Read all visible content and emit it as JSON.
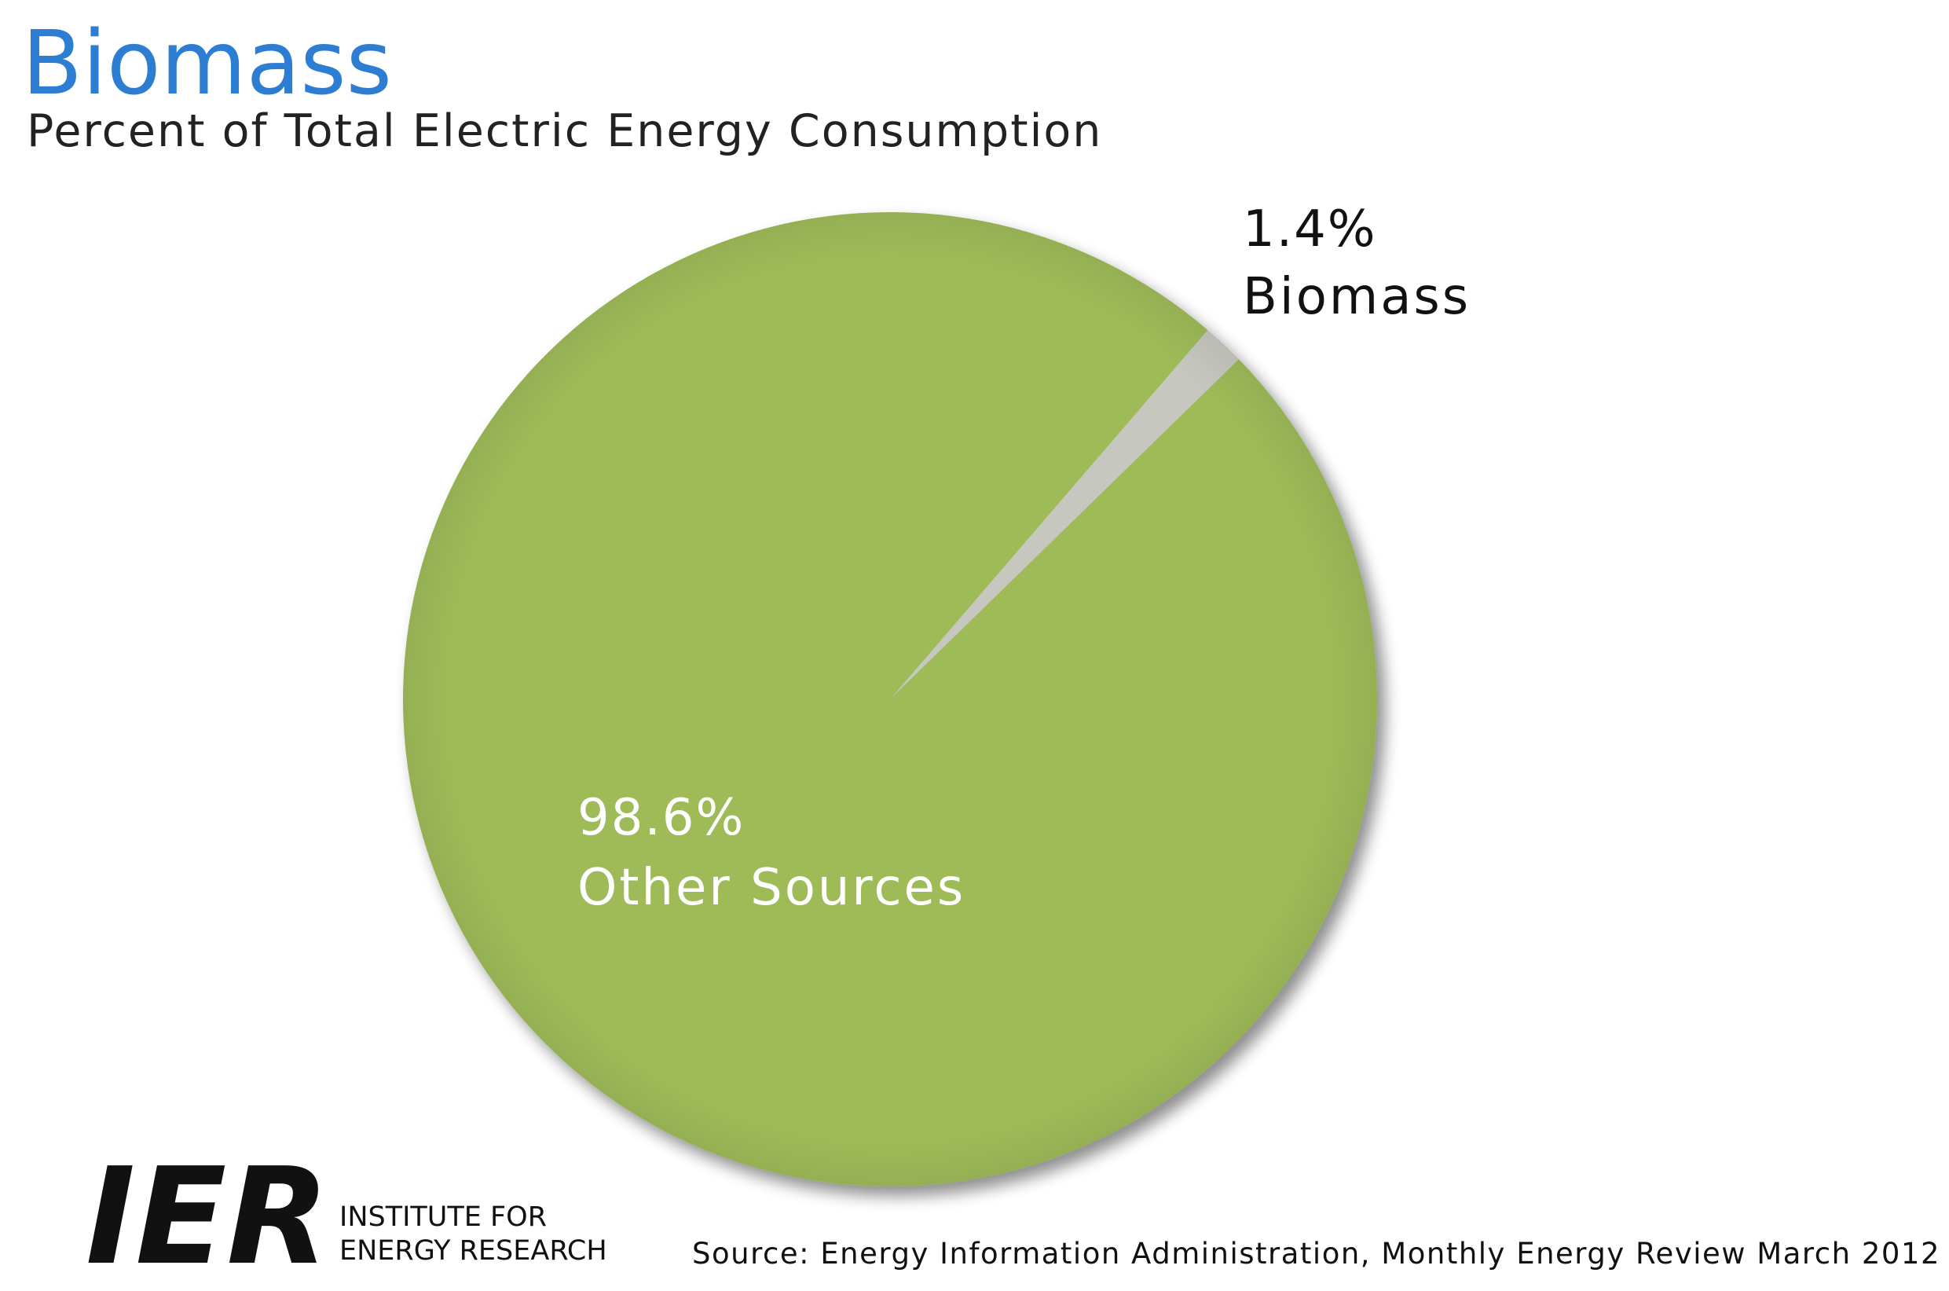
{
  "chart_data": {
    "type": "pie",
    "title": "Biomass",
    "subtitle": "Percent of Total Electric Energy Consumption",
    "categories": [
      "Biomass",
      "Other Sources"
    ],
    "values": [
      1.4,
      98.6
    ],
    "value_labels": [
      "1.4%",
      "98.6%"
    ],
    "colors": [
      "#c6c7bf",
      "#9ebb58"
    ],
    "label_colors": [
      "#111111",
      "#ffffff"
    ],
    "title_color": "#2d7dd2",
    "source": "Source: Energy Information Administration, Monthly Energy Review March 2012"
  },
  "logo": {
    "mark": "IER",
    "lines": [
      "INSTITUTE FOR",
      "ENERGY RESEARCH"
    ]
  }
}
